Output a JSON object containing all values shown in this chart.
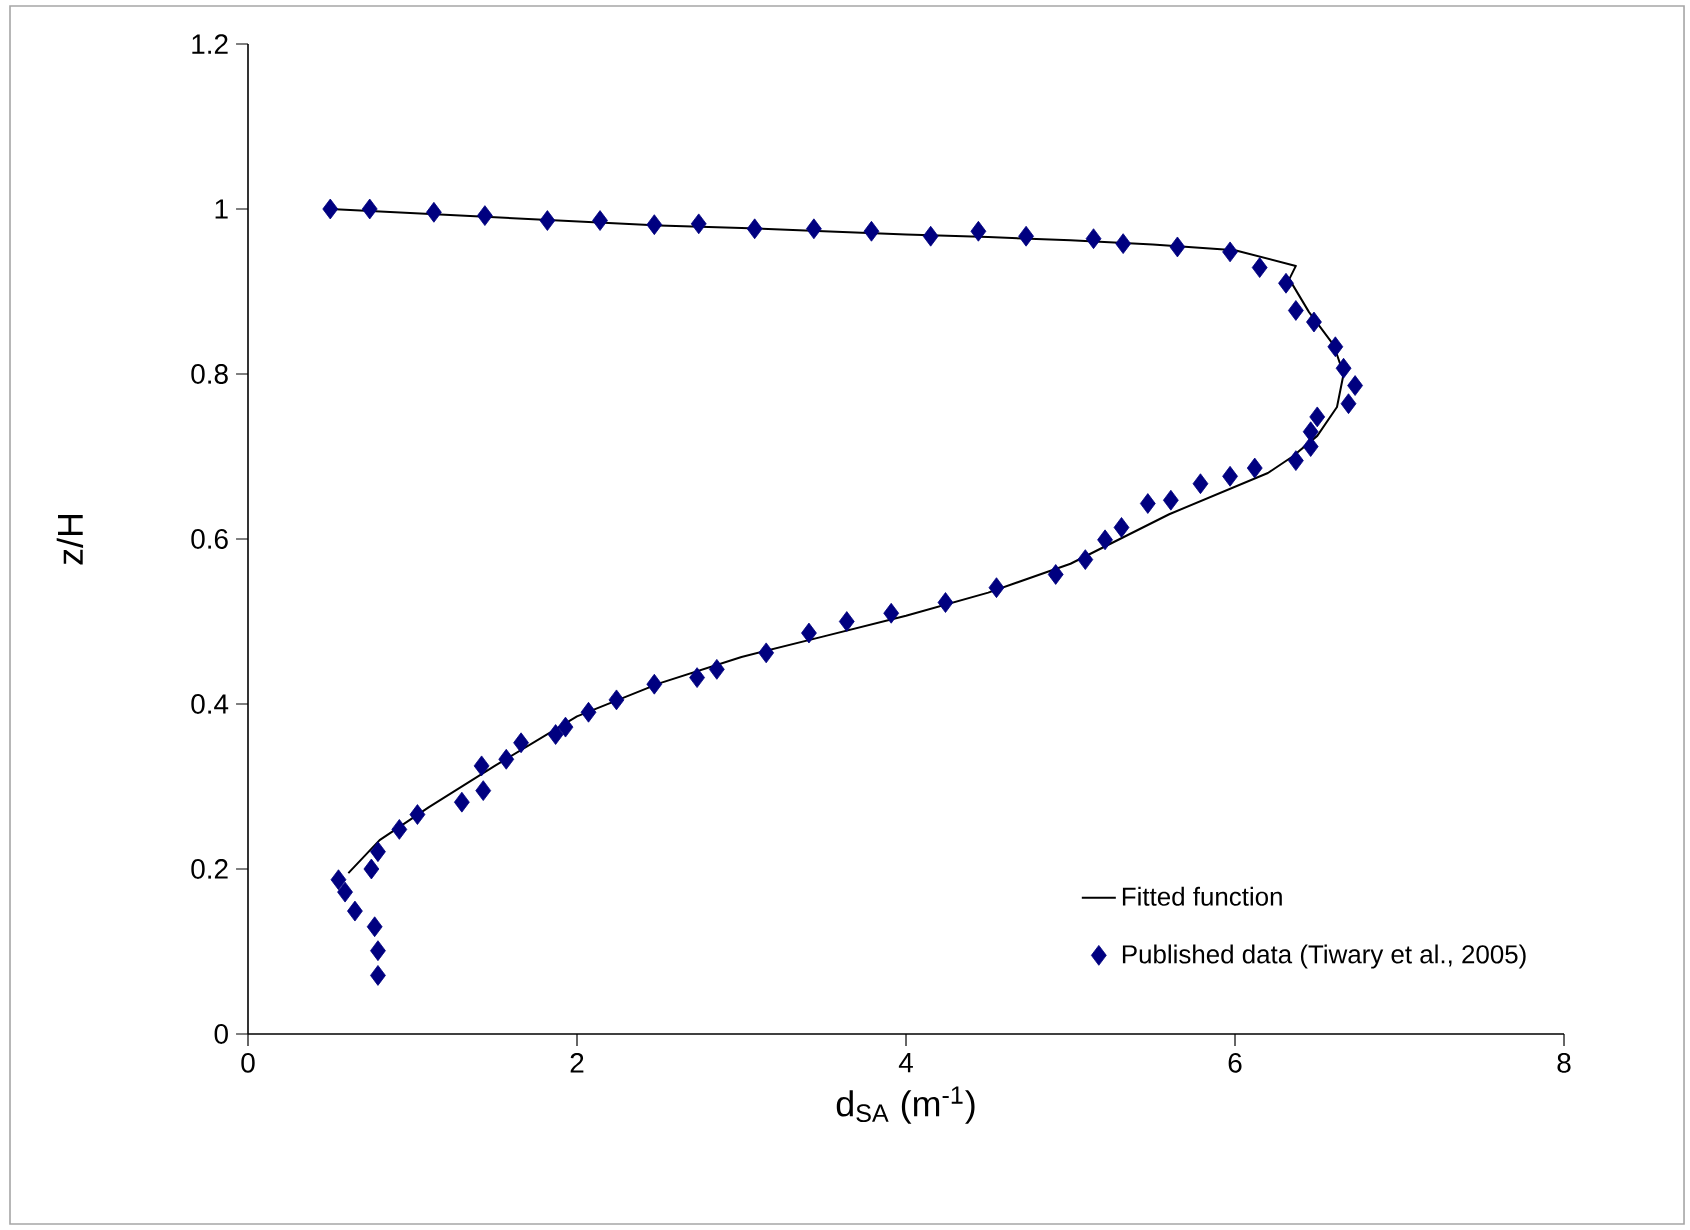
{
  "chart_data": {
    "type": "scatter",
    "xlabel": "d$_{SA}$ (m$^{-1}$)",
    "ylabel": "z/H",
    "xlim": [
      0,
      8
    ],
    "xticks": [
      0,
      2,
      4,
      6,
      8
    ],
    "ylim": [
      0,
      1.2
    ],
    "yticks": [
      0,
      0.2,
      0.4,
      0.6,
      0.8,
      1,
      1.2
    ],
    "grid": false,
    "legend": "bottom right",
    "series": [
      {
        "name": "Fitted function",
        "type": "line",
        "color": "#000000",
        "marker": "none",
        "line_style": "solid",
        "x": [
          0.5,
          1.0,
          2.5,
          3.0,
          3.5,
          4.0,
          4.5,
          5.0,
          5.5,
          6.0,
          6.37,
          6.33,
          6.45,
          6.6,
          6.66,
          6.62,
          6.5,
          6.35,
          6.2,
          5.9,
          5.6,
          5.3,
          5.0,
          4.5,
          4.0,
          3.5,
          3.0,
          2.5,
          2.0,
          1.5,
          1.1,
          0.8,
          0.61
        ],
        "values": [
          1.0,
          0.995,
          0.98,
          0.977,
          0.973,
          0.969,
          0.966,
          0.962,
          0.957,
          0.95,
          0.931,
          0.915,
          0.875,
          0.835,
          0.8,
          0.76,
          0.725,
          0.7,
          0.68,
          0.655,
          0.63,
          0.6,
          0.57,
          0.535,
          0.507,
          0.482,
          0.457,
          0.425,
          0.385,
          0.325,
          0.275,
          0.235,
          0.195
        ]
      },
      {
        "name": "Published data (Tiwary et al., 2005)",
        "color": "#000080",
        "marker": "diamond",
        "x": [
          0.5,
          0.74,
          1.13,
          1.44,
          1.82,
          2.14,
          2.47,
          2.74,
          3.08,
          3.44,
          3.79,
          4.15,
          4.44,
          4.73,
          5.14,
          5.32,
          5.65,
          5.97,
          6.15,
          6.31,
          6.37,
          6.48,
          6.61,
          6.66,
          6.73,
          6.69,
          6.5,
          6.46,
          6.46,
          6.37,
          6.12,
          5.97,
          5.79,
          5.61,
          5.47,
          5.31,
          5.21,
          5.09,
          4.91,
          4.55,
          4.24,
          3.91,
          3.64,
          3.41,
          3.15,
          2.85,
          2.73,
          2.47,
          2.24,
          2.07,
          1.93,
          1.87,
          1.66,
          1.57,
          1.42,
          1.43,
          1.3,
          1.03,
          0.92,
          0.79,
          0.75,
          0.55,
          0.59,
          0.65,
          0.77,
          0.79,
          0.79
        ],
        "values": [
          1.0,
          1.0,
          0.996,
          0.992,
          0.986,
          0.986,
          0.981,
          0.982,
          0.976,
          0.976,
          0.973,
          0.967,
          0.973,
          0.967,
          0.964,
          0.958,
          0.954,
          0.948,
          0.929,
          0.91,
          0.877,
          0.863,
          0.833,
          0.807,
          0.786,
          0.764,
          0.748,
          0.73,
          0.712,
          0.695,
          0.686,
          0.676,
          0.667,
          0.647,
          0.643,
          0.614,
          0.599,
          0.575,
          0.557,
          0.541,
          0.523,
          0.51,
          0.5,
          0.486,
          0.462,
          0.442,
          0.432,
          0.424,
          0.405,
          0.39,
          0.372,
          0.363,
          0.353,
          0.333,
          0.325,
          0.295,
          0.281,
          0.266,
          0.248,
          0.221,
          0.2,
          0.187,
          0.172,
          0.149,
          0.13,
          0.101,
          0.071
        ]
      }
    ]
  }
}
